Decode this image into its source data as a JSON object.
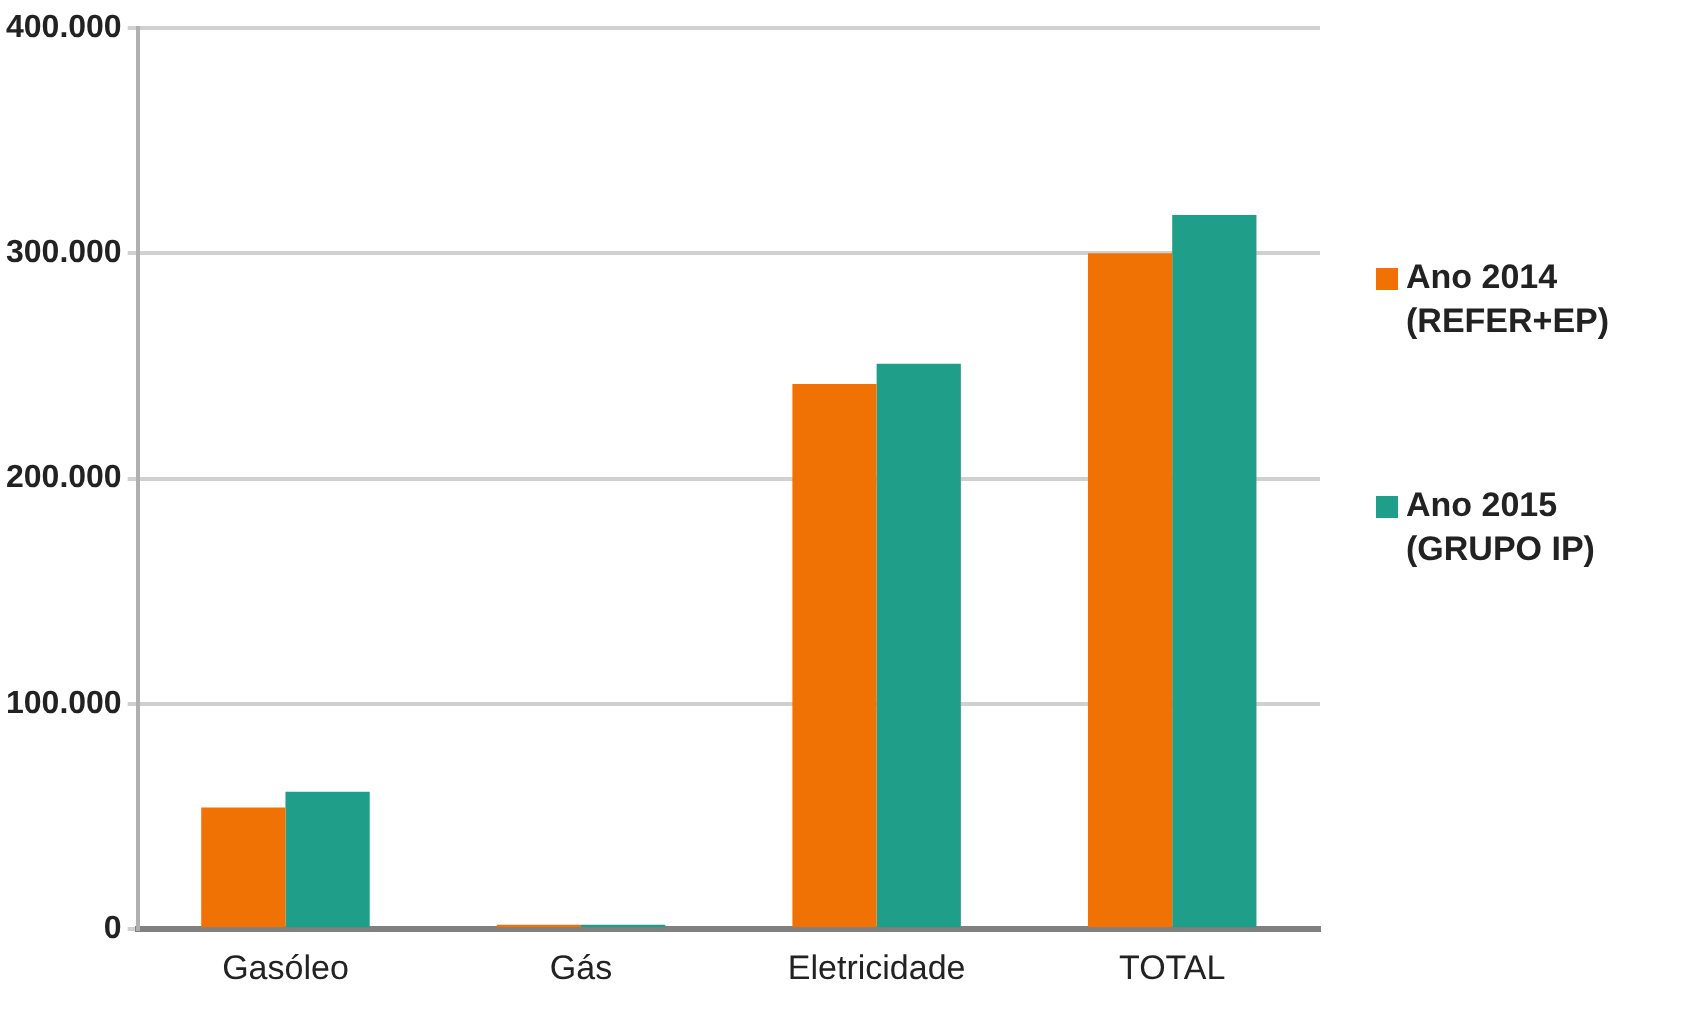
{
  "chart_data": {
    "type": "bar",
    "categories": [
      "Gasóleo",
      "Gás",
      "Eletricidade",
      "TOTAL"
    ],
    "series": [
      {
        "name": "Ano 2014 (REFER+EP)",
        "color": "#f07204",
        "values": [
          54000,
          2000,
          242000,
          300000
        ]
      },
      {
        "name": "Ano 2015 (GRUPO IP)",
        "color": "#1f9e89",
        "values": [
          61000,
          2000,
          251000,
          317000
        ]
      }
    ],
    "ylim": [
      0,
      400000
    ],
    "yticks": [
      {
        "value": 0,
        "label": "0"
      },
      {
        "value": 100000,
        "label": "100.000"
      },
      {
        "value": 200000,
        "label": "200.000"
      },
      {
        "value": 300000,
        "label": "300.000"
      },
      {
        "value": 400000,
        "label": "400.000"
      }
    ],
    "grid": "y",
    "legend": "right"
  }
}
